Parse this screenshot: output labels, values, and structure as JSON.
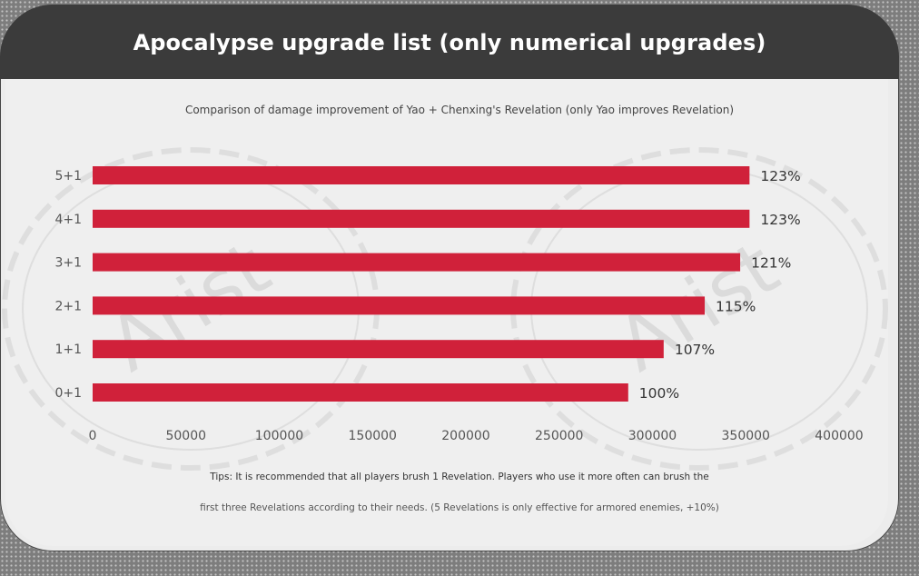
{
  "header": {
    "title": "Apocalypse upgrade list (only numerical upgrades)"
  },
  "watermark": "Arist",
  "chart_data": {
    "type": "bar",
    "orientation": "horizontal",
    "title": "Comparison of damage improvement of Yao + Chenxing's Revelation (only Yao improves Revelation)",
    "categories": [
      "5+1",
      "4+1",
      "3+1",
      "2+1",
      "1+1",
      "0+1"
    ],
    "values": [
      352000,
      352000,
      347000,
      328000,
      306000,
      287000
    ],
    "data_labels": [
      "123%",
      "123%",
      "121%",
      "115%",
      "107%",
      "100%"
    ],
    "xlim": [
      0,
      400000
    ],
    "xticks": [
      "0",
      "50000",
      "100000",
      "150000",
      "200000",
      "250000",
      "300000",
      "350000",
      "400000"
    ],
    "grid": false,
    "bar_color": "#d0213a"
  },
  "tips": {
    "line1": "Tips: It is recommended that all players brush 1 Revelation. Players who use it more often can brush the",
    "line2": "first three Revelations according to their needs. (5 Revelations is only effective for armored enemies, +10%)"
  }
}
